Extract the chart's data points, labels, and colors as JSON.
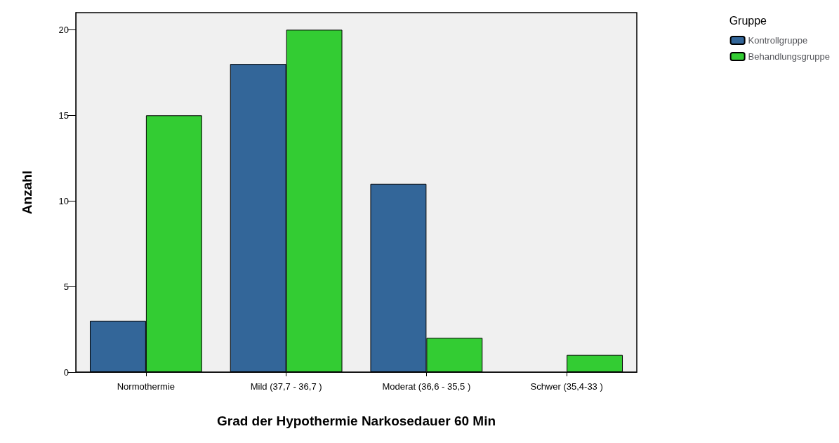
{
  "chart_data": {
    "type": "bar",
    "xlabel": "Grad der Hypothermie Narkosedauer 60 Min",
    "ylabel": "Anzahl",
    "legend_title": "Gruppe",
    "legend": "top right",
    "categories": [
      "Normothermie",
      "Mild (37,7 - 36,7 )",
      "Moderat (36,6 - 35,5 )",
      "Schwer (35,4-33 )"
    ],
    "series": [
      {
        "name": "Kontrollgruppe",
        "color": "#336699",
        "values": [
          3,
          18,
          11,
          null
        ]
      },
      {
        "name": "Behandlungsgruppe",
        "color": "#33cc33",
        "values": [
          15,
          20,
          2,
          1
        ]
      }
    ],
    "ylim": [
      0,
      21
    ],
    "yticks": [
      0,
      5,
      10,
      15,
      20
    ],
    "grid": false
  }
}
